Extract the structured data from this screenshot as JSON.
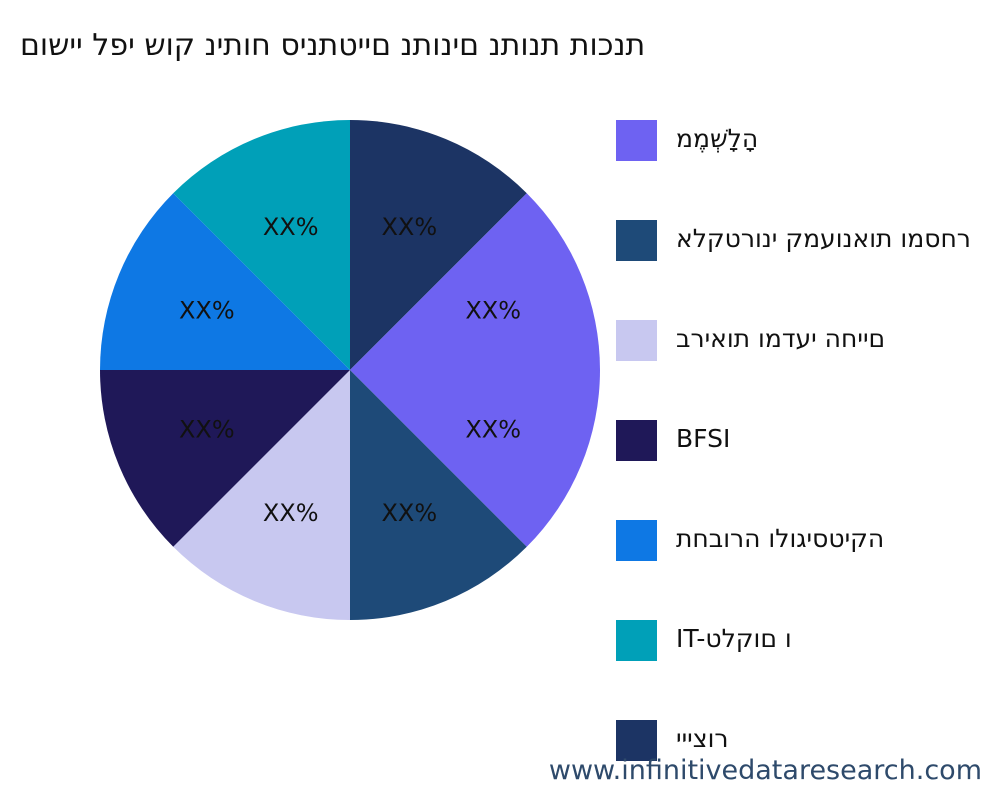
{
  "title": "תנכות תנותנ םינותנ םייטתניס חותינ קוש יפל יישום",
  "watermark": "www.infinitivedataresearch.com",
  "legend": [
    {
      "label": "הָלָשְׁמֶמ",
      "color": "#6e62f2"
    },
    {
      "label": "רחסמו תואנועמק ינורטקלא",
      "color": "#1e4a78"
    },
    {
      "label": "םייחה יעדמו תואירב",
      "color": "#c8c8f0"
    },
    {
      "label": "BFSI",
      "color": "#1f1858"
    },
    {
      "label": "הקיטסיגולו הרובחת",
      "color": "#0e78e4"
    },
    {
      "label": "IT-ו םוקלט",
      "color": "#00a0b8"
    },
    {
      "label": "רוצייי",
      "color": "#1c3464"
    }
  ],
  "chart_data": {
    "type": "pie",
    "title": "תנכות תנותנ םינותנ םייטתניס חותינ קוש יפל יישום",
    "slices": [
      {
        "label": "רוצייי",
        "value": 12.5,
        "display": "XX%",
        "color": "#1c3464"
      },
      {
        "label": "הָלָשְׁמֶמ",
        "value": 25,
        "display": "XX%",
        "color": "#6e62f2"
      },
      {
        "label": "רחסמו תואנועמק ינורטקלא",
        "value": 12.5,
        "display": "XX%",
        "color": "#1e4a78"
      },
      {
        "label": "םייחה יעדמו תואירב",
        "value": 12.5,
        "display": "XX%",
        "color": "#c8c8f0"
      },
      {
        "label": "BFSI",
        "value": 12.5,
        "display": "XX%",
        "color": "#1f1858"
      },
      {
        "label": "הקיטסיגולו הרובחת",
        "value": 12.5,
        "display": "XX%",
        "color": "#0e78e4"
      },
      {
        "label": "IT-ו םוקלט",
        "value": 12.5,
        "display": "XX%",
        "color": "#00a0b8"
      }
    ],
    "slice_labels_note": "XX%",
    "legend_position": "right"
  }
}
